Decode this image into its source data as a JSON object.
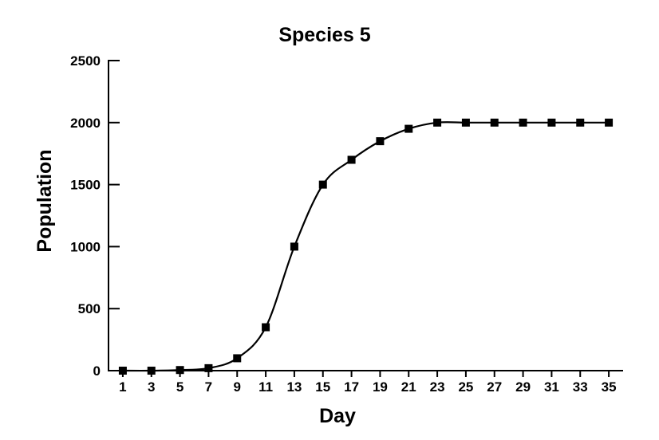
{
  "chart_data": {
    "type": "line",
    "title": "Species 5",
    "xlabel": "Day",
    "ylabel": "Population",
    "x_ticks": [
      "1",
      "3",
      "5",
      "7",
      "9",
      "11",
      "13",
      "15",
      "17",
      "19",
      "21",
      "23",
      "25",
      "27",
      "29",
      "31",
      "33",
      "35"
    ],
    "y_ticks": [
      "0",
      "500",
      "1000",
      "1500",
      "2000",
      "2500"
    ],
    "xlim": [
      0,
      36
    ],
    "ylim": [
      0,
      2500
    ],
    "grid": false,
    "series": [
      {
        "marker": "square",
        "color": "#000000",
        "x": [
          1,
          3,
          5,
          7,
          9,
          11,
          13,
          15,
          17,
          19,
          21,
          23,
          25,
          27,
          29,
          31,
          33,
          35
        ],
        "y": [
          0,
          0,
          5,
          20,
          100,
          350,
          1000,
          1500,
          1700,
          1850,
          1950,
          2000,
          2000,
          2000,
          2000,
          2000,
          2000,
          2000
        ]
      }
    ]
  }
}
